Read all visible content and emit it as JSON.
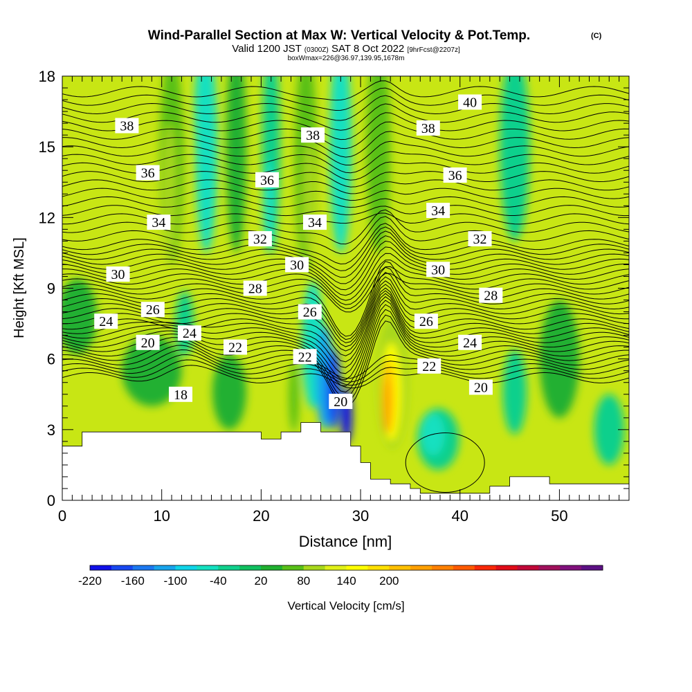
{
  "chart_data": {
    "type": "contour",
    "title": "Wind-Parallel Section at Max W: Vertical Velocity & Pot.Temp.",
    "title_mark": "(C)",
    "subtitle_main": "Valid 1200 JST",
    "subtitle_utc": "(0300Z)",
    "subtitle_date": "SAT 8 Oct 2022",
    "subtitle_fcst": "[9hrFcst@2207z]",
    "subtitle_box": "boxWmax=226@36.97,139.95,1678m",
    "xlabel": "Distance [nm]",
    "ylabel": "Height [Kft MSL]",
    "xlim": [
      0,
      57
    ],
    "ylim": [
      0,
      18
    ],
    "xticks": [
      0,
      10,
      20,
      30,
      40,
      50
    ],
    "yticks": [
      0,
      3,
      6,
      9,
      12,
      15,
      18
    ],
    "colorbar": {
      "label": "Vertical Velocity [cm/s]",
      "tick_labels": [
        "-220",
        "-160",
        "-100",
        "-40",
        "20",
        "80",
        "140",
        "200"
      ],
      "tick_values": [
        -220,
        -160,
        -100,
        -40,
        20,
        80,
        140,
        200
      ],
      "min": -220,
      "max": 250,
      "step": 30,
      "colors": [
        "#1010e8",
        "#1848f0",
        "#1c78f0",
        "#18a4ec",
        "#10d4e8",
        "#14e0c0",
        "#10d08c",
        "#10c060",
        "#20b030",
        "#58c018",
        "#a8d81c",
        "#e0f018",
        "#ffff00",
        "#ffe000",
        "#ffc000",
        "#ffa000",
        "#ff8000",
        "#ff5a00",
        "#f82808",
        "#e00c18",
        "#c00838",
        "#a0105c",
        "#80107c",
        "#5c1084"
      ]
    },
    "terrain": [
      [
        0,
        2.3
      ],
      [
        2,
        2.3
      ],
      [
        2,
        2.9
      ],
      [
        10,
        2.9
      ],
      [
        20,
        2.9
      ],
      [
        20,
        2.6
      ],
      [
        22,
        2.6
      ],
      [
        22,
        2.9
      ],
      [
        24,
        2.9
      ],
      [
        24,
        3.3
      ],
      [
        26,
        3.3
      ],
      [
        26,
        2.9
      ],
      [
        29,
        2.9
      ],
      [
        29,
        2.3
      ],
      [
        30,
        2.3
      ],
      [
        30,
        1.6
      ],
      [
        31,
        1.6
      ],
      [
        31,
        0.9
      ],
      [
        33,
        0.9
      ],
      [
        33,
        0.7
      ],
      [
        35,
        0.7
      ],
      [
        35,
        0.5
      ],
      [
        36,
        0.5
      ],
      [
        36,
        0.3
      ],
      [
        43,
        0.3
      ],
      [
        43,
        0.6
      ],
      [
        45,
        0.6
      ],
      [
        45,
        1.0
      ],
      [
        49,
        1.0
      ],
      [
        49,
        0.7
      ],
      [
        57,
        0.7
      ]
    ],
    "theta_labels": [
      {
        "text": "40",
        "x": 41,
        "y": 16.9
      },
      {
        "text": "38",
        "x": 6.5,
        "y": 15.9
      },
      {
        "text": "38",
        "x": 25.2,
        "y": 15.5
      },
      {
        "text": "38",
        "x": 36.8,
        "y": 15.8
      },
      {
        "text": "36",
        "x": 8.6,
        "y": 13.9
      },
      {
        "text": "36",
        "x": 20.6,
        "y": 13.6
      },
      {
        "text": "36",
        "x": 39.5,
        "y": 13.8
      },
      {
        "text": "34",
        "x": 9.7,
        "y": 11.8
      },
      {
        "text": "34",
        "x": 25.4,
        "y": 11.8
      },
      {
        "text": "34",
        "x": 37.8,
        "y": 12.3
      },
      {
        "text": "32",
        "x": 19.9,
        "y": 11.1
      },
      {
        "text": "32",
        "x": 42,
        "y": 11.1
      },
      {
        "text": "30",
        "x": 5.6,
        "y": 9.6
      },
      {
        "text": "30",
        "x": 23.6,
        "y": 10.0
      },
      {
        "text": "30",
        "x": 37.8,
        "y": 9.8
      },
      {
        "text": "28",
        "x": 19.4,
        "y": 9.0
      },
      {
        "text": "28",
        "x": 43.1,
        "y": 8.7
      },
      {
        "text": "26",
        "x": 9.1,
        "y": 8.1
      },
      {
        "text": "26",
        "x": 24.9,
        "y": 8.0
      },
      {
        "text": "26",
        "x": 36.6,
        "y": 7.6
      },
      {
        "text": "24",
        "x": 4.4,
        "y": 7.6
      },
      {
        "text": "24",
        "x": 12.8,
        "y": 7.1
      },
      {
        "text": "24",
        "x": 41,
        "y": 6.7
      },
      {
        "text": "22",
        "x": 17.4,
        "y": 6.5
      },
      {
        "text": "22",
        "x": 24.4,
        "y": 6.1
      },
      {
        "text": "22",
        "x": 36.9,
        "y": 5.7
      },
      {
        "text": "20",
        "x": 8.6,
        "y": 6.7
      },
      {
        "text": "20",
        "x": 28,
        "y": 4.2
      },
      {
        "text": "20",
        "x": 42.1,
        "y": 4.8
      },
      {
        "text": "18",
        "x": 11.9,
        "y": 4.5
      }
    ]
  }
}
